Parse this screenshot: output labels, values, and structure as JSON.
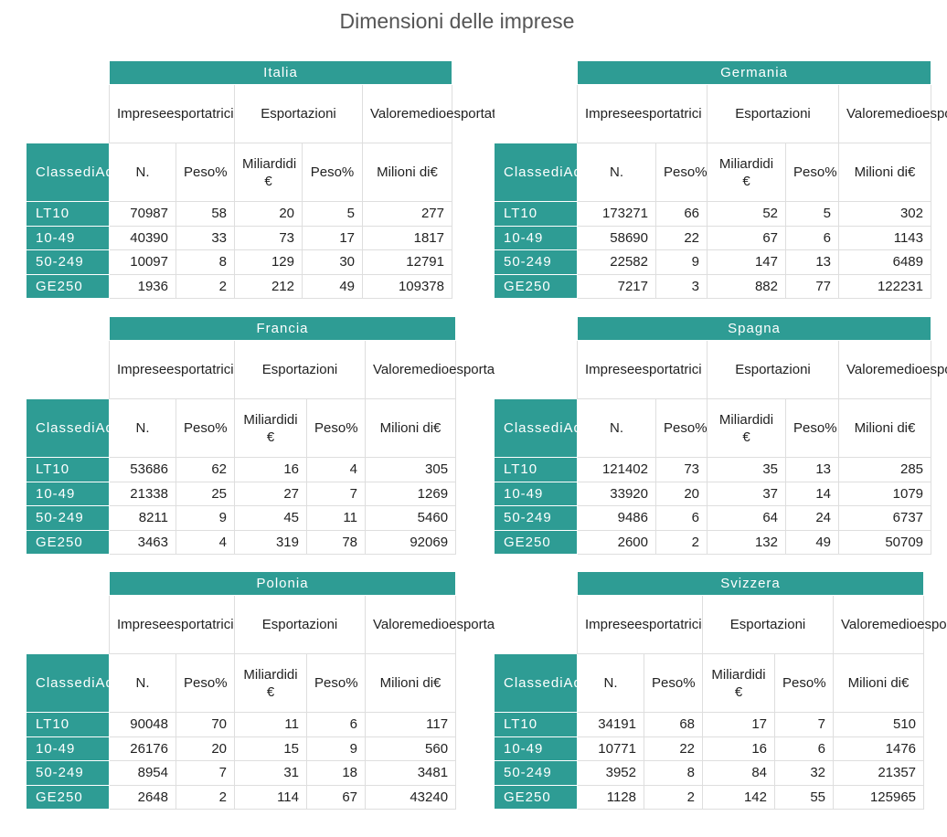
{
  "page_title": "Dimensioni delle imprese",
  "headers": {
    "imprese": "Impreseesportatrici",
    "esportazioni": "Esportazioni",
    "valore": "Valoremedioesportato",
    "classe": "ClassediAddetti",
    "n": "N.",
    "peso": "Peso%",
    "miliardi": "Miliardidi €",
    "milioni": "Milioni di€"
  },
  "countries": [
    {
      "name": "Italia",
      "rows": [
        {
          "classe": "LT10",
          "n": "70987",
          "peso_imprese": "58",
          "miliardi": "20",
          "peso_esport": "5",
          "valore": "277"
        },
        {
          "classe": "10-49",
          "n": "40390",
          "peso_imprese": "33",
          "miliardi": "73",
          "peso_esport": "17",
          "valore": "1817"
        },
        {
          "classe": "50-249",
          "n": "10097",
          "peso_imprese": "8",
          "miliardi": "129",
          "peso_esport": "30",
          "valore": "12791"
        },
        {
          "classe": "GE250",
          "n": "1936",
          "peso_imprese": "2",
          "miliardi": "212",
          "peso_esport": "49",
          "valore": "109378"
        }
      ]
    },
    {
      "name": "Germania",
      "rows": [
        {
          "classe": "LT10",
          "n": "173271",
          "peso_imprese": "66",
          "miliardi": "52",
          "peso_esport": "5",
          "valore": "302"
        },
        {
          "classe": "10-49",
          "n": "58690",
          "peso_imprese": "22",
          "miliardi": "67",
          "peso_esport": "6",
          "valore": "1143"
        },
        {
          "classe": "50-249",
          "n": "22582",
          "peso_imprese": "9",
          "miliardi": "147",
          "peso_esport": "13",
          "valore": "6489"
        },
        {
          "classe": "GE250",
          "n": "7217",
          "peso_imprese": "3",
          "miliardi": "882",
          "peso_esport": "77",
          "valore": "122231"
        }
      ]
    },
    {
      "name": "Francia",
      "rows": [
        {
          "classe": "LT10",
          "n": "53686",
          "peso_imprese": "62",
          "miliardi": "16",
          "peso_esport": "4",
          "valore": "305"
        },
        {
          "classe": "10-49",
          "n": "21338",
          "peso_imprese": "25",
          "miliardi": "27",
          "peso_esport": "7",
          "valore": "1269"
        },
        {
          "classe": "50-249",
          "n": "8211",
          "peso_imprese": "9",
          "miliardi": "45",
          "peso_esport": "11",
          "valore": "5460"
        },
        {
          "classe": "GE250",
          "n": "3463",
          "peso_imprese": "4",
          "miliardi": "319",
          "peso_esport": "78",
          "valore": "92069"
        }
      ]
    },
    {
      "name": "Spagna",
      "rows": [
        {
          "classe": "LT10",
          "n": "121402",
          "peso_imprese": "73",
          "miliardi": "35",
          "peso_esport": "13",
          "valore": "285"
        },
        {
          "classe": "10-49",
          "n": "33920",
          "peso_imprese": "20",
          "miliardi": "37",
          "peso_esport": "14",
          "valore": "1079"
        },
        {
          "classe": "50-249",
          "n": "9486",
          "peso_imprese": "6",
          "miliardi": "64",
          "peso_esport": "24",
          "valore": "6737"
        },
        {
          "classe": "GE250",
          "n": "2600",
          "peso_imprese": "2",
          "miliardi": "132",
          "peso_esport": "49",
          "valore": "50709"
        }
      ]
    },
    {
      "name": "Polonia",
      "rows": [
        {
          "classe": "LT10",
          "n": "90048",
          "peso_imprese": "70",
          "miliardi": "11",
          "peso_esport": "6",
          "valore": "117"
        },
        {
          "classe": "10-49",
          "n": "26176",
          "peso_imprese": "20",
          "miliardi": "15",
          "peso_esport": "9",
          "valore": "560"
        },
        {
          "classe": "50-249",
          "n": "8954",
          "peso_imprese": "7",
          "miliardi": "31",
          "peso_esport": "18",
          "valore": "3481"
        },
        {
          "classe": "GE250",
          "n": "2648",
          "peso_imprese": "2",
          "miliardi": "114",
          "peso_esport": "67",
          "valore": "43240"
        }
      ]
    },
    {
      "name": "Svizzera",
      "rows": [
        {
          "classe": "LT10",
          "n": "34191",
          "peso_imprese": "68",
          "miliardi": "17",
          "peso_esport": "7",
          "valore": "510"
        },
        {
          "classe": "10-49",
          "n": "10771",
          "peso_imprese": "22",
          "miliardi": "16",
          "peso_esport": "6",
          "valore": "1476"
        },
        {
          "classe": "50-249",
          "n": "3952",
          "peso_imprese": "8",
          "miliardi": "84",
          "peso_esport": "32",
          "valore": "21357"
        },
        {
          "classe": "GE250",
          "n": "1128",
          "peso_imprese": "2",
          "miliardi": "142",
          "peso_esport": "55",
          "valore": "125965"
        }
      ]
    }
  ]
}
